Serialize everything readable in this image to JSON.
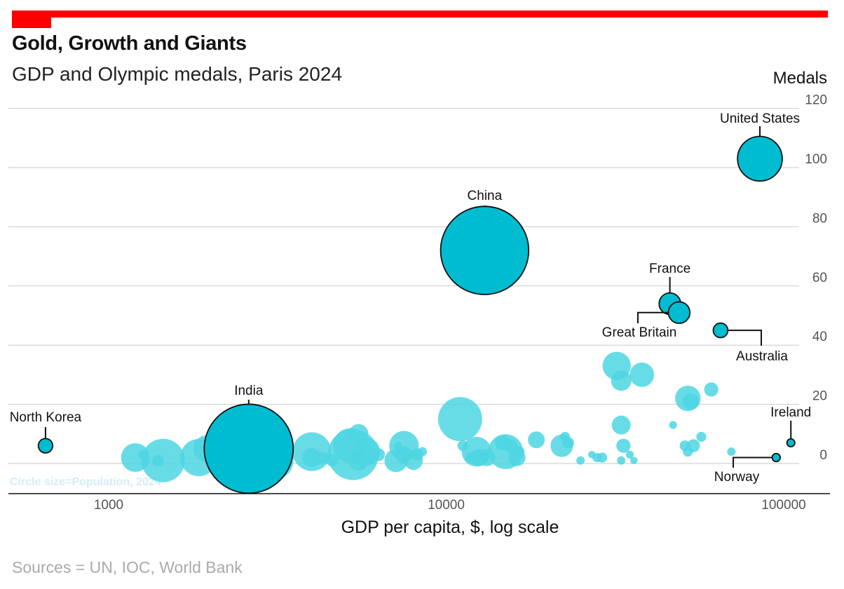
{
  "header": {
    "title": "Gold, Growth and Giants",
    "subtitle": "GDP and Olympic medals, Paris 2024"
  },
  "footer": {
    "source": "Sources = UN, IOC, World Bank"
  },
  "colors": {
    "bar": "#ff0000",
    "bubble": "#00bcd0",
    "bubble_light": "#4dd6e2",
    "grid": "#c9c9c9",
    "note": "#d6ecf7"
  },
  "chart_data": {
    "type": "scatter",
    "xlabel": "GDP per capita, $, log scale",
    "ylabel": "Medals",
    "x_scale": "log",
    "xlim": [
      550,
      140000
    ],
    "ylim": [
      -10,
      122
    ],
    "x_ticks": [
      "1000",
      "10000",
      "100000"
    ],
    "y_ticks": [
      "0",
      "20",
      "40",
      "60",
      "80",
      "100",
      "120"
    ],
    "grid": "horizontal",
    "size_note": "Circle size=Population, 2024",
    "labelled_points": [
      {
        "name": "United States",
        "x": 85000,
        "y": 103,
        "size": 340,
        "label_pos": "above"
      },
      {
        "name": "China",
        "x": 13000,
        "y": 72,
        "size": 1410,
        "label_pos": "above"
      },
      {
        "name": "France",
        "x": 46000,
        "y": 54,
        "size": 68,
        "label_pos": "above"
      },
      {
        "name": "Great Britain",
        "x": 49000,
        "y": 51,
        "size": 68,
        "label_pos": "below-left"
      },
      {
        "name": "Australia",
        "x": 65000,
        "y": 45,
        "size": 27,
        "label_pos": "below-right"
      },
      {
        "name": "India",
        "x": 2600,
        "y": 5,
        "size": 1440,
        "label_pos": "above"
      },
      {
        "name": "North Korea",
        "x": 650,
        "y": 6,
        "size": 26,
        "label_pos": "above"
      },
      {
        "name": "Ireland",
        "x": 105000,
        "y": 7,
        "size": 5,
        "label_pos": "above"
      },
      {
        "name": "Norway",
        "x": 95000,
        "y": 2,
        "size": 5.5,
        "label_pos": "below-left"
      }
    ],
    "other_points": [
      {
        "x": 1200,
        "y": 2,
        "size": 130
      },
      {
        "x": 1260,
        "y": 3,
        "size": 8
      },
      {
        "x": 1400,
        "y": 1,
        "size": 15
      },
      {
        "x": 1450,
        "y": 1,
        "size": 320
      },
      {
        "x": 1850,
        "y": 2,
        "size": 230
      },
      {
        "x": 1950,
        "y": 5,
        "size": 110
      },
      {
        "x": 3100,
        "y": 1,
        "size": 240
      },
      {
        "x": 4000,
        "y": 4,
        "size": 250
      },
      {
        "x": 4000,
        "y": 2,
        "size": 50
      },
      {
        "x": 4300,
        "y": 2,
        "size": 15
      },
      {
        "x": 4600,
        "y": 1,
        "size": 18
      },
      {
        "x": 5200,
        "y": 6,
        "size": 200
      },
      {
        "x": 5300,
        "y": 3,
        "size": 450
      },
      {
        "x": 5500,
        "y": 1,
        "size": 60
      },
      {
        "x": 5500,
        "y": 10,
        "size": 55
      },
      {
        "x": 5800,
        "y": 4,
        "size": 120
      },
      {
        "x": 6000,
        "y": 1,
        "size": 5
      },
      {
        "x": 6300,
        "y": 3,
        "size": 20
      },
      {
        "x": 7100,
        "y": 1,
        "size": 80
      },
      {
        "x": 7200,
        "y": 6,
        "size": 6
      },
      {
        "x": 7500,
        "y": 6,
        "size": 140
      },
      {
        "x": 7500,
        "y": 3,
        "size": 40
      },
      {
        "x": 8000,
        "y": 1,
        "size": 50
      },
      {
        "x": 8200,
        "y": 3,
        "size": 18
      },
      {
        "x": 8500,
        "y": 4,
        "size": 8
      },
      {
        "x": 11000,
        "y": 15,
        "size": 330
      },
      {
        "x": 11200,
        "y": 6,
        "size": 12
      },
      {
        "x": 11800,
        "y": 2,
        "size": 12
      },
      {
        "x": 12300,
        "y": 4,
        "size": 140
      },
      {
        "x": 12500,
        "y": 2,
        "size": 40
      },
      {
        "x": 12700,
        "y": 2,
        "size": 25
      },
      {
        "x": 13200,
        "y": 2,
        "size": 40
      },
      {
        "x": 14700,
        "y": 7,
        "size": 30
      },
      {
        "x": 15000,
        "y": 4,
        "size": 200
      },
      {
        "x": 15500,
        "y": 6,
        "size": 25
      },
      {
        "x": 16200,
        "y": 2,
        "size": 40
      },
      {
        "x": 16500,
        "y": 4,
        "size": 10
      },
      {
        "x": 18500,
        "y": 8,
        "size": 38
      },
      {
        "x": 22000,
        "y": 6,
        "size": 75
      },
      {
        "x": 22500,
        "y": 9,
        "size": 10
      },
      {
        "x": 23000,
        "y": 7,
        "size": 15
      },
      {
        "x": 25000,
        "y": 1,
        "size": 6
      },
      {
        "x": 27000,
        "y": 3,
        "size": 4
      },
      {
        "x": 28000,
        "y": 2,
        "size": 8
      },
      {
        "x": 29000,
        "y": 2,
        "size": 10
      },
      {
        "x": 32000,
        "y": 33,
        "size": 125
      },
      {
        "x": 33000,
        "y": 13,
        "size": 50
      },
      {
        "x": 33000,
        "y": 28,
        "size": 60
      },
      {
        "x": 33500,
        "y": 6,
        "size": 25
      },
      {
        "x": 33000,
        "y": 1,
        "size": 6
      },
      {
        "x": 35000,
        "y": 3,
        "size": 5
      },
      {
        "x": 36000,
        "y": 1,
        "size": 4
      },
      {
        "x": 38000,
        "y": 30,
        "size": 90
      },
      {
        "x": 52000,
        "y": 22,
        "size": 100
      },
      {
        "x": 53000,
        "y": 21,
        "size": 35
      },
      {
        "x": 51000,
        "y": 6,
        "size": 12
      },
      {
        "x": 54000,
        "y": 6,
        "size": 20
      },
      {
        "x": 52000,
        "y": 4,
        "size": 10
      },
      {
        "x": 57000,
        "y": 9,
        "size": 10
      },
      {
        "x": 47000,
        "y": 13,
        "size": 5
      },
      {
        "x": 61000,
        "y": 25,
        "size": 25
      },
      {
        "x": 70000,
        "y": 4,
        "size": 6
      }
    ]
  }
}
